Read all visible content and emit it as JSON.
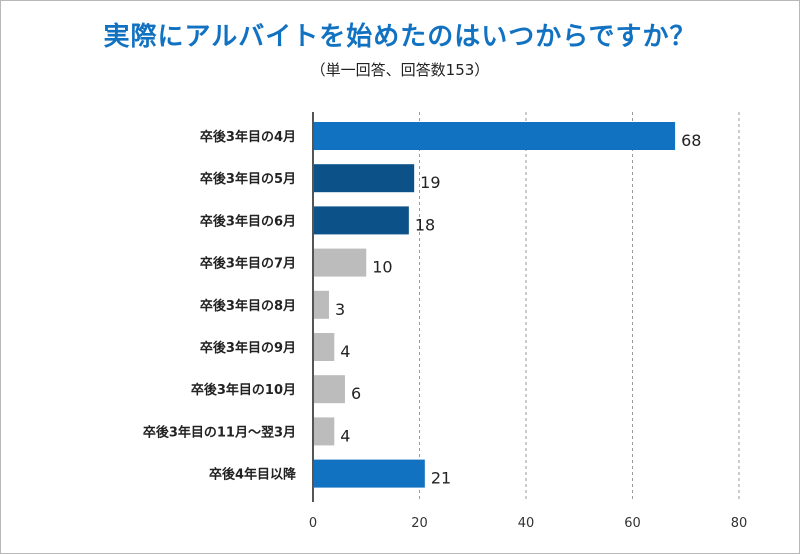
{
  "chart_data": {
    "type": "bar",
    "orientation": "horizontal",
    "title": "実際にアルバイトを始めたのはいつからですか？",
    "subtitle": "（単一回答、回答数153）",
    "categories": [
      "卒後3年目の4月",
      "卒後3年目の5月",
      "卒後3年目の6月",
      "卒後3年目の7月",
      "卒後3年目の8月",
      "卒後3年目の9月",
      "卒後3年目の10月",
      "卒後3年目の11月～翌3月",
      "卒後4年目以降"
    ],
    "values": [
      68,
      19,
      18,
      10,
      3,
      4,
      6,
      4,
      21
    ],
    "bar_colors": [
      "#1272c2",
      "#0c5289",
      "#0c5289",
      "#bcbcbc",
      "#bcbcbc",
      "#bcbcbc",
      "#bcbcbc",
      "#bcbcbc",
      "#1272c2"
    ],
    "xlim": [
      0,
      80
    ],
    "xticks": [
      0,
      20,
      40,
      60,
      80
    ],
    "grid": "vertical dashed"
  }
}
